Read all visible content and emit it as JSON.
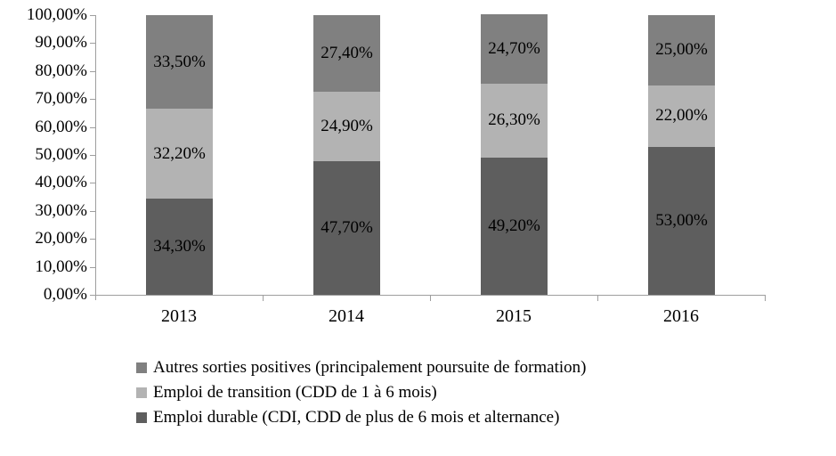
{
  "chart_data": {
    "type": "bar",
    "subtype": "stacked-100-percent",
    "title": "",
    "xlabel": "",
    "ylabel": "",
    "background_color": "#ffffff",
    "axis_color": "#9e9e9e",
    "label_text_color": "#000000",
    "grid": false,
    "categories": [
      "2013",
      "2014",
      "2015",
      "2016"
    ],
    "series": [
      {
        "name": "Emploi durable (CDI, CDD de plus de 6 mois et alternance)",
        "color": "#5e5e5e",
        "values": [
          34.3,
          47.7,
          49.2,
          53.0
        ],
        "data_labels": [
          "34,30%",
          "47,70%",
          "49,20%",
          "53,00%"
        ]
      },
      {
        "name": "Emploi de transition (CDD de 1 à 6 mois)",
        "color": "#b3b3b3",
        "values": [
          32.2,
          24.9,
          26.3,
          22.0
        ],
        "data_labels": [
          "32,20%",
          "24,90%",
          "26,30%",
          "22,00%"
        ]
      },
      {
        "name": "Autres sorties positives (principalement poursuite de formation)",
        "color": "#808080",
        "values": [
          33.5,
          27.4,
          24.7,
          25.0
        ],
        "data_labels": [
          "33,50%",
          "27,40%",
          "24,70%",
          "25,00%"
        ]
      }
    ],
    "y_axis": {
      "min": 0,
      "max": 100,
      "step": 10,
      "tick_labels": [
        "0,00%",
        "10,00%",
        "20,00%",
        "30,00%",
        "40,00%",
        "50,00%",
        "60,00%",
        "70,00%",
        "80,00%",
        "90,00%",
        "100,00%"
      ]
    },
    "legend": {
      "position": "bottom-left",
      "entries": [
        {
          "label": "Autres sorties positives (principalement poursuite de formation)",
          "color": "#808080"
        },
        {
          "label": "Emploi de transition (CDD de 1 à 6 mois)",
          "color": "#b3b3b3"
        },
        {
          "label": "Emploi durable (CDI, CDD de plus de 6 mois et alternance)",
          "color": "#5e5e5e"
        }
      ]
    }
  }
}
